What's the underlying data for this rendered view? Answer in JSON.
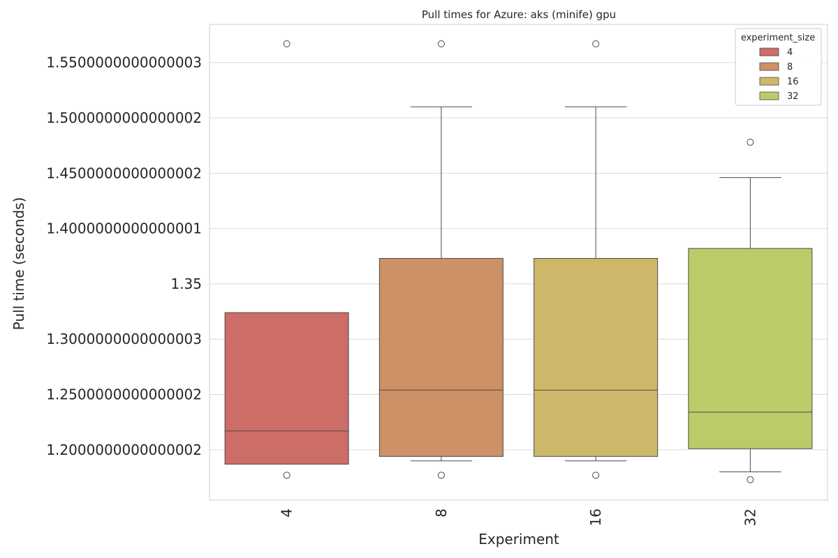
{
  "chart_data": {
    "type": "box",
    "title": "Pull times for Azure: aks (minife) gpu",
    "xlabel": "Experiment",
    "ylabel": "Pull time (seconds)",
    "ylim": [
      1.1545,
      1.5845
    ],
    "y_ticks": [
      {
        "value": 1.2,
        "label": "1.2000000000000002"
      },
      {
        "value": 1.25,
        "label": "1.2500000000000002"
      },
      {
        "value": 1.3,
        "label": "1.3000000000000003"
      },
      {
        "value": 1.35,
        "label": "1.35"
      },
      {
        "value": 1.4,
        "label": "1.4000000000000001"
      },
      {
        "value": 1.45,
        "label": "1.4500000000000002"
      },
      {
        "value": 1.5,
        "label": "1.5000000000000002"
      },
      {
        "value": 1.55,
        "label": "1.5500000000000003"
      }
    ],
    "grid": true,
    "legend": {
      "title": "experiment_size",
      "placement": "top-right",
      "entries": [
        "4",
        "8",
        "16",
        "32"
      ]
    },
    "categories": [
      "4",
      "8",
      "16",
      "32"
    ],
    "colors": [
      "#cc6d67",
      "#cc9167",
      "#cdb869",
      "#bacc69"
    ],
    "line_color": "#4a4a4a",
    "boxes": [
      {
        "category": "4",
        "whisker_low": 1.187,
        "q1": 1.187,
        "median": 1.217,
        "q3": 1.324,
        "whisker_high": 1.324,
        "outliers": [
          1.177,
          1.567
        ]
      },
      {
        "category": "8",
        "whisker_low": 1.19,
        "q1": 1.194,
        "median": 1.254,
        "q3": 1.373,
        "whisker_high": 1.51,
        "outliers": [
          1.177,
          1.567
        ]
      },
      {
        "category": "16",
        "whisker_low": 1.19,
        "q1": 1.194,
        "median": 1.254,
        "q3": 1.373,
        "whisker_high": 1.51,
        "outliers": [
          1.177,
          1.567
        ]
      },
      {
        "category": "32",
        "whisker_low": 1.18,
        "q1": 1.201,
        "median": 1.234,
        "q3": 1.382,
        "whisker_high": 1.446,
        "outliers": [
          1.173,
          1.478
        ]
      }
    ]
  }
}
